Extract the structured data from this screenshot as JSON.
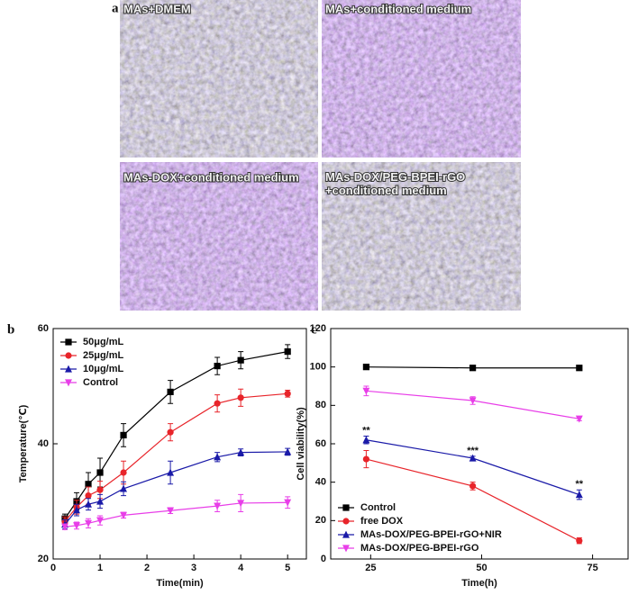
{
  "panel_a": {
    "label": "a",
    "captions": [
      "MAs+DMEM",
      "MAs+conditioned medium",
      "MAs-DOX+conditioned medium",
      "MAs-DOX/PEG-BPEI-rGO\n+conditioned medium"
    ]
  },
  "chart_data": [
    {
      "type": "line",
      "panel_label": "b",
      "x_label": "Time(min)",
      "y_label": "Temperature(℃)",
      "x": [
        0.25,
        0.5,
        0.75,
        1,
        1.5,
        2.5,
        3.5,
        4,
        5
      ],
      "xlim": [
        0,
        5.4
      ],
      "ylim": [
        20,
        60
      ],
      "xticks": [
        0,
        1,
        2,
        3,
        4,
        5
      ],
      "yticks": [
        20,
        40,
        60
      ],
      "legend": "upper left",
      "series": [
        {
          "name": "50μg/mL",
          "color": "#000000",
          "marker": "square",
          "values": [
            27,
            30,
            33,
            35,
            41.5,
            49,
            53.5,
            54.5,
            56
          ],
          "errors": [
            0.8,
            1.5,
            2,
            2.5,
            2,
            2,
            1.5,
            1.5,
            1.2
          ]
        },
        {
          "name": "25μg/mL",
          "color": "#e8242a",
          "marker": "circle",
          "values": [
            26.5,
            29,
            31,
            32,
            35,
            42,
            47,
            48,
            48.7
          ],
          "errors": [
            0.8,
            1.2,
            1.5,
            1.5,
            2,
            1.5,
            1.5,
            1.5,
            0.6
          ]
        },
        {
          "name": "10μg/mL",
          "color": "#1a1aa8",
          "marker": "triangle-up",
          "values": [
            26,
            28.5,
            29.5,
            30,
            32.2,
            35,
            37.7,
            38.5,
            38.6
          ],
          "errors": [
            0.8,
            1,
            1,
            1.2,
            1.2,
            2,
            0.8,
            0.6,
            0.6
          ]
        },
        {
          "name": "Control",
          "color": "#e83ee8",
          "marker": "triangle-down",
          "values": [
            25.6,
            25.8,
            26.2,
            26.7,
            27.6,
            28.4,
            29.2,
            29.7,
            29.8
          ],
          "errors": [
            0.5,
            0.6,
            0.8,
            0.8,
            0.5,
            0.5,
            1,
            1.5,
            1
          ]
        }
      ]
    },
    {
      "type": "line",
      "panel_label": "c",
      "x_label": "Time(h)",
      "y_label": "Cell viability(%)",
      "x": [
        24,
        48,
        72
      ],
      "xlim": [
        16,
        83
      ],
      "ylim": [
        0,
        120
      ],
      "xticks": [
        25,
        50,
        75
      ],
      "yticks": [
        0,
        20,
        40,
        60,
        80,
        100,
        120
      ],
      "legend": "lower left",
      "series": [
        {
          "name": "Control",
          "color": "#000000",
          "marker": "square",
          "values": [
            100,
            99.5,
            99.5
          ],
          "errors": [
            0.5,
            0.5,
            0.5
          ]
        },
        {
          "name": "free DOX",
          "color": "#e8242a",
          "marker": "circle",
          "values": [
            52,
            38,
            9.5
          ],
          "errors": [
            4.5,
            2,
            1.5
          ]
        },
        {
          "name": "MAs-DOX/PEG-BPEI-rGO+NIR",
          "color": "#1a1aa8",
          "marker": "triangle-up",
          "values": [
            62,
            52.5,
            33.5
          ],
          "errors": [
            2,
            1,
            2.5
          ],
          "point_labels": [
            "**",
            "***",
            "**"
          ]
        },
        {
          "name": "MAs-DOX/PEG-BPEI-rGO",
          "color": "#e83ee8",
          "marker": "triangle-down",
          "values": [
            87.5,
            82.5,
            73
          ],
          "errors": [
            2.5,
            2,
            1
          ]
        }
      ]
    }
  ]
}
